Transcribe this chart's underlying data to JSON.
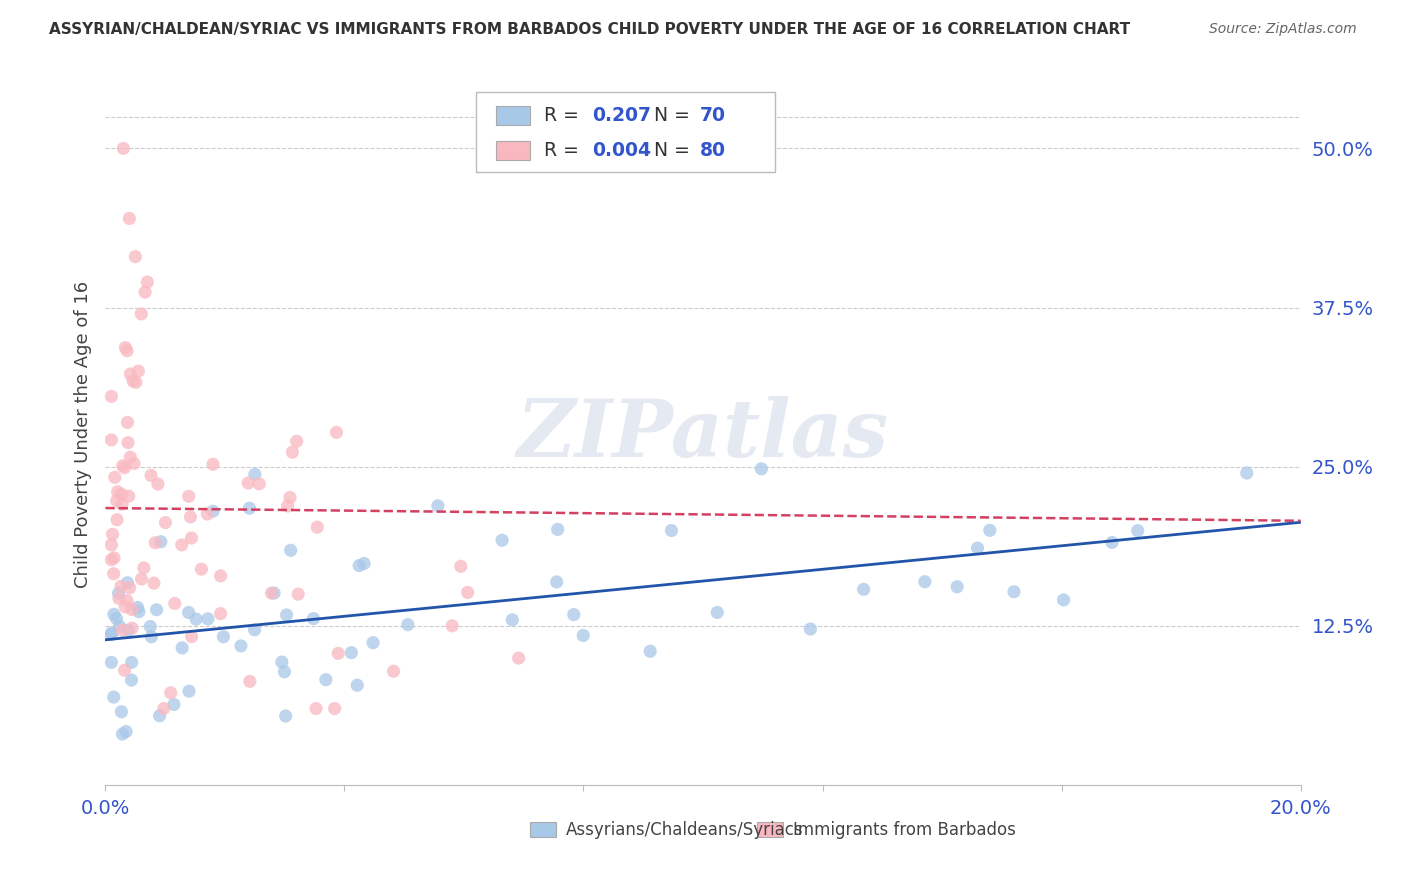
{
  "title": "ASSYRIAN/CHALDEAN/SYRIAC VS IMMIGRANTS FROM BARBADOS CHILD POVERTY UNDER THE AGE OF 16 CORRELATION CHART",
  "source": "Source: ZipAtlas.com",
  "ylabel": "Child Poverty Under the Age of 16",
  "ylabel_ticks": [
    "12.5%",
    "25.0%",
    "37.5%",
    "50.0%"
  ],
  "ylabel_tick_vals": [
    0.125,
    0.25,
    0.375,
    0.5
  ],
  "xmin": 0.0,
  "xmax": 0.2,
  "ymin": 0.0,
  "ymax": 0.55,
  "series1_label": "Assyrians/Chaldeans/Syriacs",
  "series1_R": "0.207",
  "series1_N": "70",
  "series1_color": "#a8c8e8",
  "series1_line_color": "#2255aa",
  "series2_label": "Immigrants from Barbados",
  "series2_R": "0.004",
  "series2_N": "80",
  "series2_color": "#f9b8c0",
  "series2_line_color": "#d44060",
  "watermark_text": "ZIPatlas",
  "background_color": "#ffffff",
  "grid_color": "#cccccc",
  "legend_text_color": "#3355cc",
  "legend_label_color": "#333333"
}
